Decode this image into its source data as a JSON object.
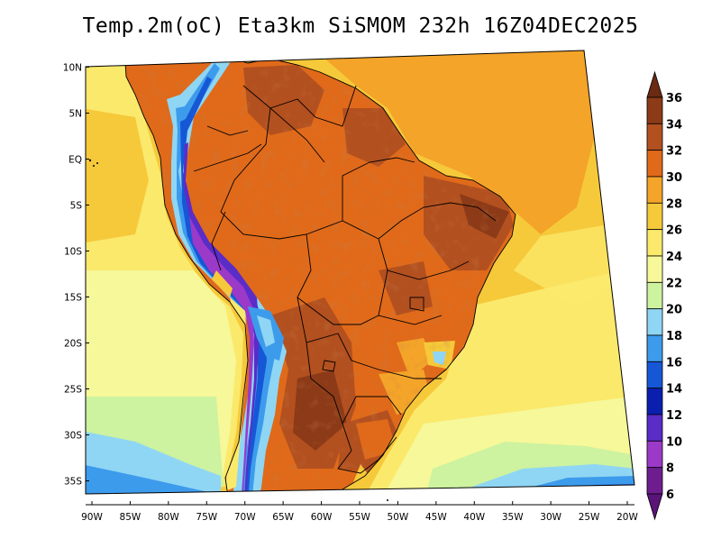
{
  "title": "Temp.2m(oC) Eta3km SiSMOM 232h 16Z04DEC2025",
  "map": {
    "variable": "2 m air temperature",
    "unit": "oC",
    "lon_range": [
      -91,
      -20
    ],
    "lat_range": [
      -38,
      11
    ],
    "lat_ticks": [
      {
        "value": 10,
        "label": "10N"
      },
      {
        "value": 5,
        "label": "5N"
      },
      {
        "value": 0,
        "label": "EQ"
      },
      {
        "value": -5,
        "label": "5S"
      },
      {
        "value": -10,
        "label": "10S"
      },
      {
        "value": -15,
        "label": "15S"
      },
      {
        "value": -20,
        "label": "20S"
      },
      {
        "value": -25,
        "label": "25S"
      },
      {
        "value": -30,
        "label": "30S"
      },
      {
        "value": -35,
        "label": "35S"
      }
    ],
    "lon_ticks": [
      {
        "value": -90,
        "label": "90W"
      },
      {
        "value": -85,
        "label": "85W"
      },
      {
        "value": -80,
        "label": "80W"
      },
      {
        "value": -75,
        "label": "75W"
      },
      {
        "value": -70,
        "label": "70W"
      },
      {
        "value": -65,
        "label": "65W"
      },
      {
        "value": -60,
        "label": "60W"
      },
      {
        "value": -55,
        "label": "55W"
      },
      {
        "value": -50,
        "label": "50W"
      },
      {
        "value": -45,
        "label": "45W"
      },
      {
        "value": -40,
        "label": "40W"
      },
      {
        "value": -35,
        "label": "35W"
      },
      {
        "value": -30,
        "label": "30W"
      },
      {
        "value": -25,
        "label": "25W"
      },
      {
        "value": -20,
        "label": "20W"
      }
    ]
  },
  "colorbar": {
    "levels": [
      {
        "value": 36,
        "label": "36",
        "color": "#6b2a12"
      },
      {
        "value": 34,
        "label": "34",
        "color": "#8c3a17"
      },
      {
        "value": 32,
        "label": "32",
        "color": "#b3501f"
      },
      {
        "value": 30,
        "label": "30",
        "color": "#e06a1a"
      },
      {
        "value": 28,
        "label": "28",
        "color": "#f3a429"
      },
      {
        "value": 26,
        "label": "26",
        "color": "#f6c93a"
      },
      {
        "value": 24,
        "label": "24",
        "color": "#fbe96c"
      },
      {
        "value": 22,
        "label": "22",
        "color": "#f6f899"
      },
      {
        "value": 20,
        "label": "20",
        "color": "#cdf2a0"
      },
      {
        "value": 18,
        "label": "18",
        "color": "#8fd6f4"
      },
      {
        "value": 16,
        "label": "16",
        "color": "#3d9bec"
      },
      {
        "value": 14,
        "label": "14",
        "color": "#1657d6"
      },
      {
        "value": 12,
        "label": "12",
        "color": "#0a1fae"
      },
      {
        "value": 10,
        "label": "10",
        "color": "#5a2cc8"
      },
      {
        "value": 8,
        "label": "8",
        "color": "#9b39c9"
      },
      {
        "value": 6,
        "label": "6",
        "color": "#6e1d8f"
      }
    ],
    "top_triangle_color": "#6b2a12",
    "bottom_triangle_color": "#5a1478"
  }
}
